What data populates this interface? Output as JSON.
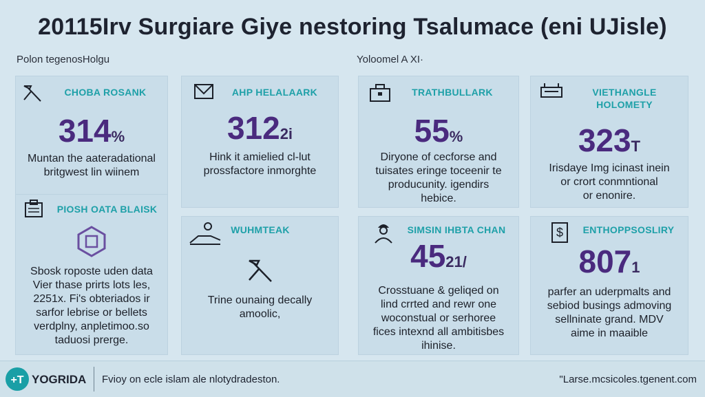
{
  "title": "20115Irv Surgiare Giye nestoring Tsalumace (eni UJisle)",
  "subheads": {
    "left": "Polon tegenosHolgu",
    "right": "Yoloomel A XI·"
  },
  "cards": [
    {
      "icon": "hammer-icon",
      "title": "CHOBA ROSANK",
      "value": "314",
      "unit": "%",
      "desc": [
        "Muntan the aateradational",
        "britgwest lin wiinem"
      ]
    },
    {
      "icon": "envelope-icon",
      "title": "AHP HELALAARK",
      "value": "312",
      "unit": "2i",
      "desc": [
        "Hink it amielied cl-lut",
        "prossfactore inmorghte"
      ]
    },
    {
      "icon": "briefcase-icon",
      "title": "TRATHBULLARK",
      "value": "55",
      "unit": "%",
      "desc": [
        "Diryone of cecforse and",
        "tuisates eringe toceenir te",
        "producunity. igendirs",
        "hebice."
      ]
    },
    {
      "icon": "cash-register-icon",
      "title": "VIETHANGLE HOLOMETY",
      "value": "323",
      "unit": "T",
      "desc": [
        "Irisdaye Img icinast inein",
        "or crort conmntional",
        "or enonire."
      ]
    },
    {
      "icon": "clipboard-icon",
      "title": "PIOSH OATA BLAISK",
      "value": "",
      "unit": "",
      "desc": [
        "Sbosk roposte uden data",
        "Vier thase prirts lots les,",
        "2251x. Fi's obteriados ir",
        "sarfor lebrise or bellets",
        "verdplny, anpletimoo.so",
        "taduosi prerge."
      ]
    },
    {
      "icon": "hand-icon",
      "title": "WUHMTEAK",
      "value": "",
      "unit": "",
      "desc": [
        "Trine ounaing decally",
        "amoolic,"
      ]
    },
    {
      "icon": "worker-icon",
      "title": "SIMSIN IHBTA CHAN",
      "value": "45",
      "unit": "21/",
      "desc": [
        "Crosstuane & geliqed on",
        "lind crrted and rewr one",
        "woconstual or serhoree",
        "fices intexnd all ambitisbes",
        "ihinise."
      ]
    },
    {
      "icon": "dollar-icon",
      "title": "ENTHOPPSOSLIRY",
      "value": "807",
      "unit": "1",
      "desc": [
        "parfer an uderpmalts and",
        "sebiod busings admoving",
        "sellninate grand. MDV",
        "aime in maaible"
      ]
    }
  ],
  "footer": {
    "brand": "YOGRIDA",
    "tagline": "Fvioy on ecle islam ale nlotydradeston.",
    "url": "\"Larse.mcsicoles.tgenent.com"
  },
  "colors": {
    "background": "#d6e6ef",
    "card": "#c9dde9",
    "accent_teal": "#1ea0a8",
    "value_purple": "#4a2a7e"
  }
}
